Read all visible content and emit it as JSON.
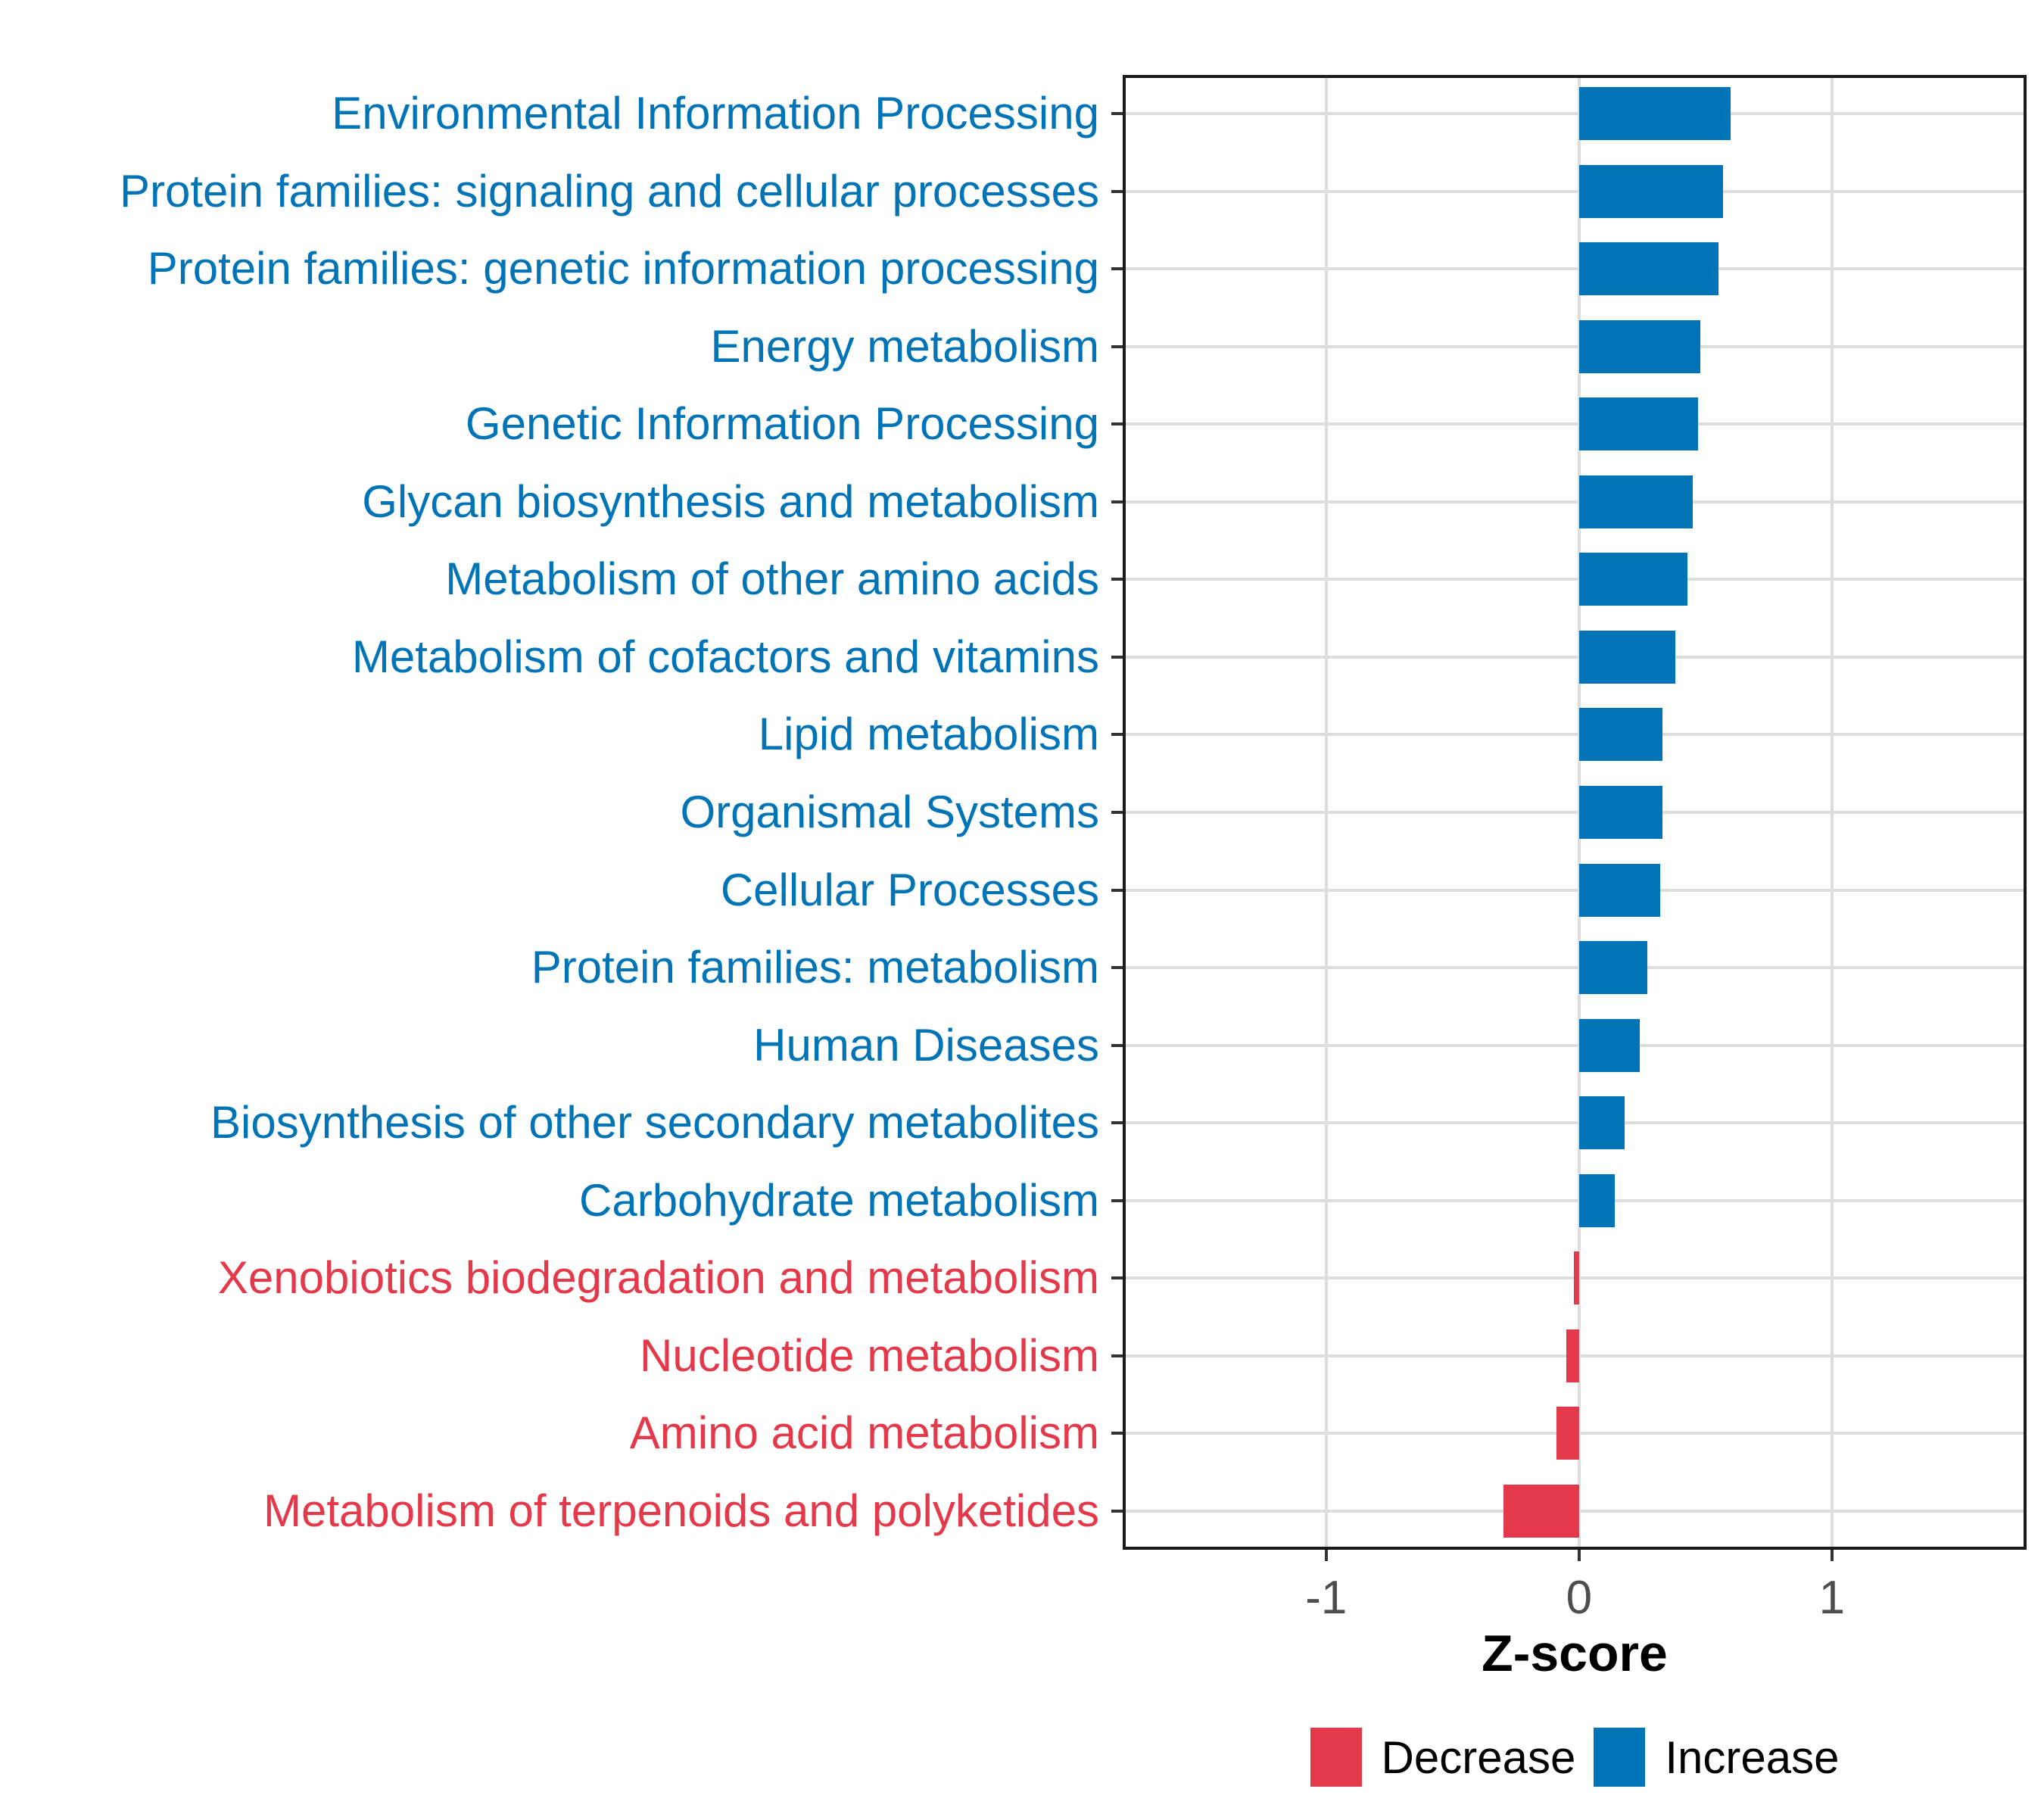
{
  "chart_data": {
    "type": "bar",
    "orientation": "horizontal",
    "title": "",
    "xlabel": "Z-score",
    "ylabel": "",
    "xlim": [
      -1.805,
      1.77
    ],
    "x_ticks": [
      {
        "value": -1,
        "label": "-1"
      },
      {
        "value": 0,
        "label": "0"
      },
      {
        "value": 1,
        "label": "1"
      }
    ],
    "grid": "major-only",
    "legend_position": "bottom-center",
    "colors": {
      "Increase": "#0074B6",
      "Decrease": "#E4394A"
    },
    "style": {
      "gridline_color": "#dddddd",
      "tick_color": "#333333",
      "tick_label_color": "#4d4d4d",
      "panel_border_color": "#1a1a1a",
      "background": "#ffffff"
    },
    "bars": [
      {
        "label": "Environmental Information Processing",
        "value": 0.6,
        "direction": "Increase"
      },
      {
        "label": "Protein families: signaling and cellular processes",
        "value": 0.57,
        "direction": "Increase"
      },
      {
        "label": "Protein families: genetic information processing",
        "value": 0.55,
        "direction": "Increase"
      },
      {
        "label": "Energy metabolism",
        "value": 0.48,
        "direction": "Increase"
      },
      {
        "label": "Genetic Information Processing",
        "value": 0.47,
        "direction": "Increase"
      },
      {
        "label": "Glycan biosynthesis and metabolism",
        "value": 0.45,
        "direction": "Increase"
      },
      {
        "label": "Metabolism of other amino acids",
        "value": 0.43,
        "direction": "Increase"
      },
      {
        "label": "Metabolism of cofactors and vitamins",
        "value": 0.38,
        "direction": "Increase"
      },
      {
        "label": "Lipid metabolism",
        "value": 0.33,
        "direction": "Increase"
      },
      {
        "label": "Organismal Systems",
        "value": 0.33,
        "direction": "Increase"
      },
      {
        "label": "Cellular Processes",
        "value": 0.32,
        "direction": "Increase"
      },
      {
        "label": "Protein families: metabolism",
        "value": 0.27,
        "direction": "Increase"
      },
      {
        "label": "Human Diseases",
        "value": 0.24,
        "direction": "Increase"
      },
      {
        "label": "Biosynthesis of other secondary metabolites",
        "value": 0.18,
        "direction": "Increase"
      },
      {
        "label": "Carbohydrate metabolism",
        "value": 0.14,
        "direction": "Increase"
      },
      {
        "label": "Xenobiotics biodegradation and metabolism",
        "value": -0.02,
        "direction": "Decrease"
      },
      {
        "label": "Nucleotide metabolism",
        "value": -0.05,
        "direction": "Decrease"
      },
      {
        "label": "Amino acid metabolism",
        "value": -0.09,
        "direction": "Decrease"
      },
      {
        "label": "Metabolism of terpenoids and polyketides",
        "value": -0.3,
        "direction": "Decrease"
      }
    ],
    "legend": [
      {
        "label": "Decrease",
        "color": "#E4394A"
      },
      {
        "label": "Increase",
        "color": "#0074B6"
      }
    ]
  }
}
